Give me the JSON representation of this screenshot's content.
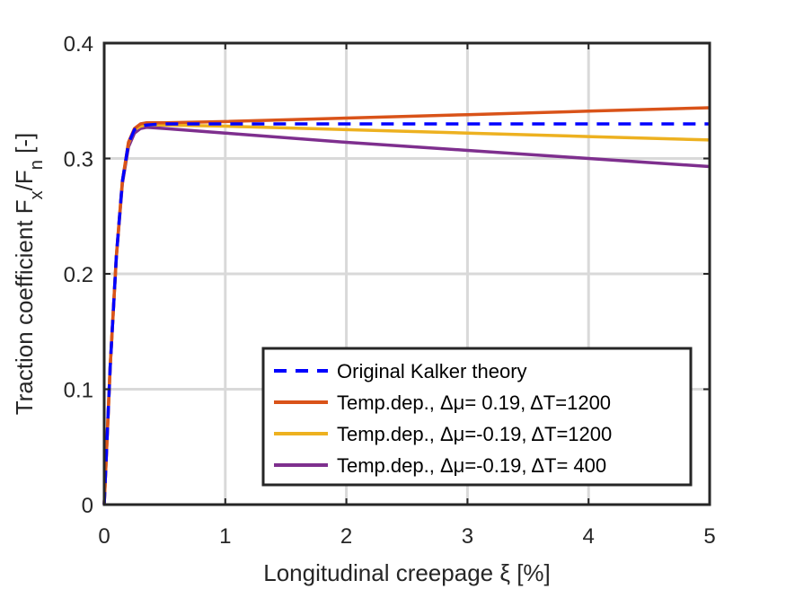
{
  "chart_data": {
    "type": "line",
    "xlabel": "Longitudinal creepage ξ [%]",
    "ylabel": "Traction coefficient F_x/F_n [-]",
    "xlim": [
      0,
      5
    ],
    "ylim": [
      0,
      0.4
    ],
    "xticks": [
      0,
      1,
      2,
      3,
      4,
      5
    ],
    "yticks": [
      0,
      0.1,
      0.2,
      0.3,
      0.4
    ],
    "xtick_labels": [
      "0",
      "1",
      "2",
      "3",
      "4",
      "5"
    ],
    "ytick_labels": [
      "0",
      "0.1",
      "0.2",
      "0.3",
      "0.4"
    ],
    "grid": true,
    "legend_position": "bottom-right",
    "series": [
      {
        "name": "Original Kalker theory",
        "color": "#0000ff",
        "dash": "dashed",
        "x": [
          0,
          0.05,
          0.1,
          0.15,
          0.2,
          0.25,
          0.3,
          0.35,
          0.5,
          1,
          2,
          3,
          4,
          5
        ],
        "y": [
          0,
          0.12,
          0.215,
          0.28,
          0.313,
          0.325,
          0.328,
          0.329,
          0.33,
          0.33,
          0.33,
          0.33,
          0.33,
          0.33
        ]
      },
      {
        "name": "Temp.dep., Δμ= 0.19, ΔT=1200",
        "color": "#d95319",
        "dash": "solid",
        "x": [
          0,
          0.05,
          0.1,
          0.15,
          0.2,
          0.25,
          0.3,
          0.35,
          0.5,
          1,
          2,
          3,
          4,
          5
        ],
        "y": [
          0,
          0.12,
          0.215,
          0.28,
          0.314,
          0.326,
          0.33,
          0.331,
          0.331,
          0.332,
          0.335,
          0.338,
          0.341,
          0.344
        ]
      },
      {
        "name": "Temp.dep., Δμ=-0.19, ΔT=1200",
        "color": "#edb120",
        "dash": "solid",
        "x": [
          0,
          0.05,
          0.1,
          0.15,
          0.2,
          0.25,
          0.3,
          0.35,
          0.5,
          1,
          2,
          3,
          4,
          5
        ],
        "y": [
          0,
          0.12,
          0.215,
          0.28,
          0.313,
          0.325,
          0.328,
          0.329,
          0.329,
          0.328,
          0.325,
          0.322,
          0.319,
          0.316
        ]
      },
      {
        "name": "Temp.dep., Δμ=-0.19, ΔT= 400",
        "color": "#7e2f8e",
        "dash": "solid",
        "x": [
          0,
          0.05,
          0.1,
          0.15,
          0.2,
          0.25,
          0.3,
          0.35,
          0.5,
          1,
          2,
          3,
          4,
          5
        ],
        "y": [
          0,
          0.12,
          0.214,
          0.278,
          0.31,
          0.322,
          0.326,
          0.327,
          0.326,
          0.322,
          0.314,
          0.307,
          0.3,
          0.293
        ]
      }
    ]
  }
}
